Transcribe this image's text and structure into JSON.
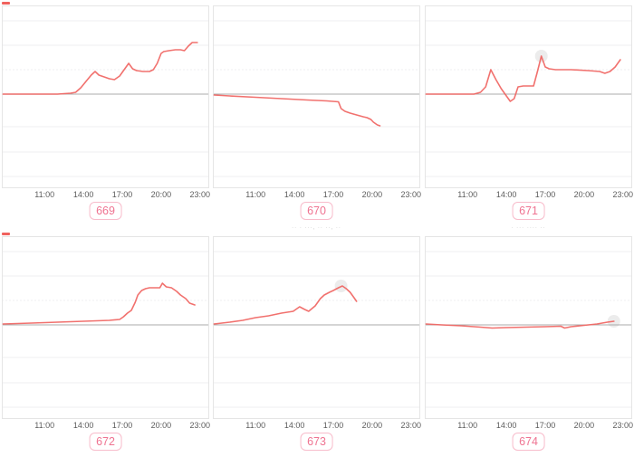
{
  "colors": {
    "line": "#f0625e",
    "baseline": "#ababab",
    "grid": "#efeff0",
    "plot_border": "#e5e5e5",
    "tick_text": "#5c5c5c",
    "badge_text": "#ef7391",
    "badge_border": "#f8bccb",
    "marker_halo": "rgba(150,150,150,0.18)",
    "caption_text": "#c0c0c0"
  },
  "x_ticks": [
    "11:00",
    "14:00",
    "17:00",
    "20:00",
    "23:00"
  ],
  "x_tick_hours": [
    11,
    14,
    17,
    20,
    23
  ],
  "x_range_hours": [
    7.7,
    23.7
  ],
  "y_axis": "unlabeled; values relative to gray zero baseline",
  "chart_data": [
    {
      "type": "line",
      "badge": "669",
      "caption": null,
      "red_dash": true,
      "marker": null,
      "points": [
        [
          7.8,
          0
        ],
        [
          12,
          0
        ],
        [
          13,
          1
        ],
        [
          13.4,
          2
        ],
        [
          13.8,
          7
        ],
        [
          14.2,
          14
        ],
        [
          14.6,
          21
        ],
        [
          14.9,
          25
        ],
        [
          15.2,
          21
        ],
        [
          15.6,
          19
        ],
        [
          16,
          17
        ],
        [
          16.4,
          16
        ],
        [
          16.8,
          20
        ],
        [
          17.2,
          28
        ],
        [
          17.5,
          34
        ],
        [
          17.8,
          28
        ],
        [
          18.1,
          26
        ],
        [
          18.6,
          25
        ],
        [
          19.1,
          25
        ],
        [
          19.4,
          27
        ],
        [
          19.7,
          34
        ],
        [
          20,
          45
        ],
        [
          20.2,
          47
        ],
        [
          20.6,
          48
        ],
        [
          21.1,
          49
        ],
        [
          21.5,
          49
        ],
        [
          21.8,
          48
        ],
        [
          22.1,
          53
        ],
        [
          22.4,
          57
        ],
        [
          22.8,
          57
        ]
      ]
    },
    {
      "type": "line",
      "badge": "670",
      "caption": "· ··· · ···",
      "red_dash": false,
      "marker": null,
      "points": [
        [
          7.8,
          -1
        ],
        [
          9,
          -2
        ],
        [
          11,
          -3.5
        ],
        [
          13,
          -5
        ],
        [
          15,
          -6.5
        ],
        [
          16.5,
          -7.5
        ],
        [
          17.4,
          -8.5
        ],
        [
          17.6,
          -16
        ],
        [
          17.9,
          -19
        ],
        [
          18.3,
          -21
        ],
        [
          18.8,
          -23
        ],
        [
          19.3,
          -25
        ],
        [
          19.6,
          -26
        ],
        [
          19.9,
          -28
        ],
        [
          20.1,
          -31
        ],
        [
          20.4,
          -34
        ],
        [
          20.6,
          -35
        ]
      ]
    },
    {
      "type": "line",
      "badge": "671",
      "caption": "· ··· · ···",
      "red_dash": false,
      "marker": [
        16.7,
        42
      ],
      "points": [
        [
          7.8,
          0
        ],
        [
          11.5,
          0
        ],
        [
          12,
          2
        ],
        [
          12.4,
          8
        ],
        [
          12.8,
          27
        ],
        [
          13.2,
          16
        ],
        [
          13.6,
          6
        ],
        [
          14,
          -2
        ],
        [
          14.3,
          -8
        ],
        [
          14.6,
          -5
        ],
        [
          14.9,
          8
        ],
        [
          15.3,
          9
        ],
        [
          16.1,
          9
        ],
        [
          16.4,
          25
        ],
        [
          16.7,
          42
        ],
        [
          17,
          30
        ],
        [
          17.3,
          28
        ],
        [
          17.8,
          27
        ],
        [
          19,
          27
        ],
        [
          20.3,
          26
        ],
        [
          21.2,
          25
        ],
        [
          21.6,
          23
        ],
        [
          22,
          25
        ],
        [
          22.4,
          30
        ],
        [
          22.8,
          38
        ]
      ]
    },
    {
      "type": "line",
      "badge": "672",
      "caption": null,
      "red_dash": true,
      "marker": null,
      "points": [
        [
          7.8,
          1
        ],
        [
          10,
          2
        ],
        [
          12,
          3
        ],
        [
          14,
          4
        ],
        [
          16,
          5
        ],
        [
          16.8,
          6
        ],
        [
          17.1,
          9
        ],
        [
          17.4,
          13
        ],
        [
          17.7,
          16
        ],
        [
          18,
          25
        ],
        [
          18.2,
          33
        ],
        [
          18.5,
          38
        ],
        [
          18.8,
          40
        ],
        [
          19.1,
          41
        ],
        [
          19.5,
          41
        ],
        [
          19.9,
          41
        ],
        [
          20.1,
          46
        ],
        [
          20.4,
          42
        ],
        [
          20.8,
          41
        ],
        [
          21.2,
          37
        ],
        [
          21.5,
          33
        ],
        [
          21.9,
          29
        ],
        [
          22.2,
          24
        ],
        [
          22.6,
          22
        ]
      ]
    },
    {
      "type": "line",
      "badge": "673",
      "caption": "·· · ···, ·· ··, ··",
      "red_dash": false,
      "marker": [
        17.6,
        43
      ],
      "points": [
        [
          7.8,
          1
        ],
        [
          9,
          3
        ],
        [
          10,
          5
        ],
        [
          11,
          8
        ],
        [
          12,
          10
        ],
        [
          13,
          13
        ],
        [
          13.9,
          15
        ],
        [
          14.4,
          20
        ],
        [
          14.8,
          17
        ],
        [
          15.1,
          15
        ],
        [
          15.6,
          21
        ],
        [
          16,
          29
        ],
        [
          16.3,
          33
        ],
        [
          16.7,
          36
        ],
        [
          17,
          38
        ],
        [
          17.4,
          41
        ],
        [
          17.7,
          43
        ],
        [
          18,
          40
        ],
        [
          18.3,
          36
        ],
        [
          18.6,
          30
        ],
        [
          18.8,
          26
        ]
      ]
    },
    {
      "type": "line",
      "badge": "674",
      "caption": "· ··· ···· ··",
      "red_dash": false,
      "marker": [
        22.3,
        4
      ],
      "points": [
        [
          7.8,
          1
        ],
        [
          9,
          0
        ],
        [
          10.5,
          -1
        ],
        [
          12,
          -2.5
        ],
        [
          12.9,
          -3.5
        ],
        [
          14,
          -3
        ],
        [
          15.5,
          -2.5
        ],
        [
          17,
          -2
        ],
        [
          18.2,
          -1.5
        ],
        [
          18.5,
          -3.5
        ],
        [
          19,
          -2
        ],
        [
          20,
          -0.5
        ],
        [
          21,
          1
        ],
        [
          21.8,
          3
        ],
        [
          22.3,
          4
        ]
      ]
    }
  ]
}
